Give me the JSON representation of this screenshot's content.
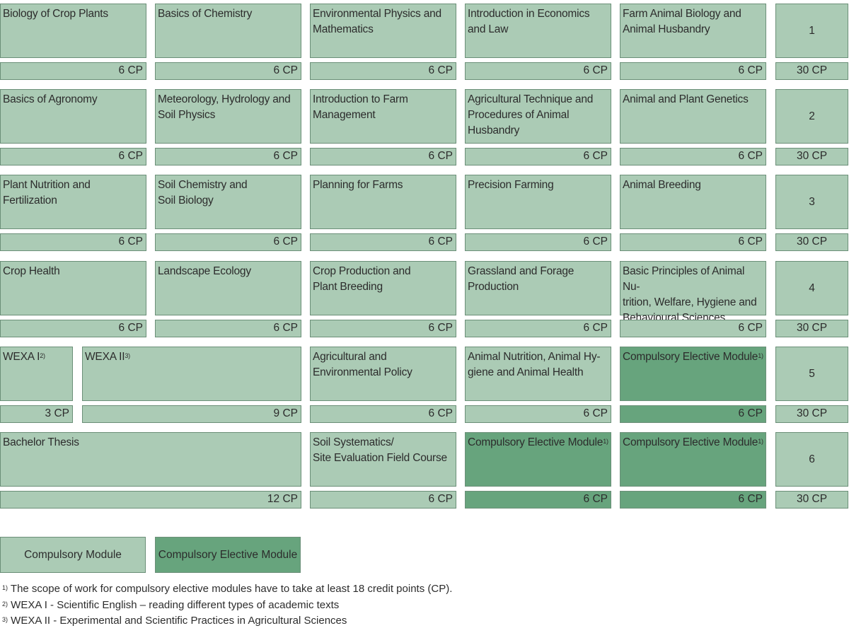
{
  "modules": [
    {
      "id": "biology-of-crop-plants",
      "name": "Biology of Crop Plants",
      "sup": "",
      "cp": "6 CP",
      "type": "compulsory"
    },
    {
      "id": "basics-of-chemistry",
      "name": "Basics of Chemistry",
      "sup": "",
      "cp": "6 CP",
      "type": "compulsory"
    },
    {
      "id": "environmental-physics",
      "name": "Environmental Physics and\nMathematics",
      "sup": "",
      "cp": "6 CP",
      "type": "compulsory"
    },
    {
      "id": "economics-and-law",
      "name": "Introduction in Economics\nand Law",
      "sup": "",
      "cp": "6 CP",
      "type": "compulsory"
    },
    {
      "id": "farm-animal-biology",
      "name": "Farm Animal Biology and\nAnimal Husbandry",
      "sup": "",
      "cp": "6 CP",
      "type": "compulsory"
    },
    {
      "id": "basics-of-agronomy",
      "name": "Basics of Agronomy",
      "sup": "",
      "cp": "6 CP",
      "type": "compulsory"
    },
    {
      "id": "meteorology-hydrology",
      "name": "Meteorology, Hydrology and\nSoil Physics",
      "sup": "",
      "cp": "6 CP",
      "type": "compulsory"
    },
    {
      "id": "farm-management",
      "name": "Introduction to Farm\nManagement",
      "sup": "",
      "cp": "6 CP",
      "type": "compulsory"
    },
    {
      "id": "agricultural-technique",
      "name": "Agricultural Technique and\nProcedures of Animal\nHusbandry",
      "sup": "",
      "cp": "6 CP",
      "type": "compulsory"
    },
    {
      "id": "animal-plant-genetics",
      "name": "Animal and Plant Genetics",
      "sup": "",
      "cp": "6 CP",
      "type": "compulsory"
    },
    {
      "id": "plant-nutrition",
      "name": "Plant Nutrition and\nFertilization",
      "sup": "",
      "cp": "6 CP",
      "type": "compulsory"
    },
    {
      "id": "soil-chemistry",
      "name": "Soil Chemistry and\nSoil Biology",
      "sup": "",
      "cp": "6 CP",
      "type": "compulsory"
    },
    {
      "id": "planning-for-farms",
      "name": "Planning for Farms",
      "sup": "",
      "cp": "6 CP",
      "type": "compulsory"
    },
    {
      "id": "precision-farming",
      "name": "Precision Farming",
      "sup": "",
      "cp": "6 CP",
      "type": "compulsory"
    },
    {
      "id": "animal-breeding",
      "name": "Animal Breeding",
      "sup": "",
      "cp": "6 CP",
      "type": "compulsory"
    },
    {
      "id": "crop-health",
      "name": "Crop Health",
      "sup": "",
      "cp": "6 CP",
      "type": "compulsory"
    },
    {
      "id": "landscape-ecology",
      "name": "Landscape Ecology",
      "sup": "",
      "cp": "6 CP",
      "type": "compulsory"
    },
    {
      "id": "crop-production",
      "name": "Crop Production and\nPlant Breeding",
      "sup": "",
      "cp": "6 CP",
      "type": "compulsory"
    },
    {
      "id": "grassland-forage",
      "name": "Grassland and Forage\nProduction",
      "sup": "",
      "cp": "6 CP",
      "type": "compulsory"
    },
    {
      "id": "animal-nutrition-principles",
      "name": "Basic Principles of Animal Nu-\ntrition, Welfare, Hygiene and\nBehavioural Sciences",
      "sup": "",
      "cp": "6 CP",
      "type": "compulsory"
    },
    {
      "id": "wexa-1",
      "name": "WEXA I",
      "sup": "2)",
      "cp": "3 CP",
      "type": "compulsory"
    },
    {
      "id": "wexa-2",
      "name": "WEXA II",
      "sup": "3)",
      "cp": "9 CP",
      "type": "compulsory"
    },
    {
      "id": "agricultural-policy",
      "name": "Agricultural and\nEnvironmental Policy",
      "sup": "",
      "cp": "6 CP",
      "type": "compulsory"
    },
    {
      "id": "animal-nutrition-hygiene",
      "name": "Animal Nutrition, Animal Hy-\ngiene and Animal Health",
      "sup": "",
      "cp": "6 CP",
      "type": "compulsory"
    },
    {
      "id": "elective-5",
      "name": "Compulsory Elective Module",
      "sup": "1)",
      "cp": "6 CP",
      "type": "elective"
    },
    {
      "id": "bachelor-thesis",
      "name": "Bachelor Thesis",
      "sup": "",
      "cp": "12 CP",
      "type": "compulsory"
    },
    {
      "id": "soil-systematics",
      "name": "Soil Systematics/\nSite Evaluation Field Course",
      "sup": "",
      "cp": "6 CP",
      "type": "compulsory"
    },
    {
      "id": "elective-6a",
      "name": "Compulsory Elective Module",
      "sup": "1)",
      "cp": "6 CP",
      "type": "elective"
    },
    {
      "id": "elective-6b",
      "name": "Compulsory Elective Module",
      "sup": "1)",
      "cp": "6 CP",
      "type": "elective"
    }
  ],
  "semesters": [
    {
      "number": "1",
      "cp": "30 CP"
    },
    {
      "number": "2",
      "cp": "30 CP"
    },
    {
      "number": "3",
      "cp": "30 CP"
    },
    {
      "number": "4",
      "cp": "30 CP"
    },
    {
      "number": "5",
      "cp": "30 CP"
    },
    {
      "number": "6",
      "cp": "30 CP"
    }
  ],
  "legend": {
    "compulsory": "Compulsory Module",
    "elective": "Compulsory Elective Module"
  },
  "footnotes": [
    {
      "mark": "1)",
      "text": " The scope of work for compulsory elective modules have to take at least 18 credit points (CP)."
    },
    {
      "mark": "2)",
      "text": " WEXA I  - Scientific English – reading different types of academic texts"
    },
    {
      "mark": "3)",
      "text": " WEXA II - Experimental and Scientific Practices in Agricultural Sciences"
    }
  ],
  "colors": {
    "compulsory": "#abcbb5",
    "elective": "#67a47d",
    "border": "#6b8f78"
  }
}
